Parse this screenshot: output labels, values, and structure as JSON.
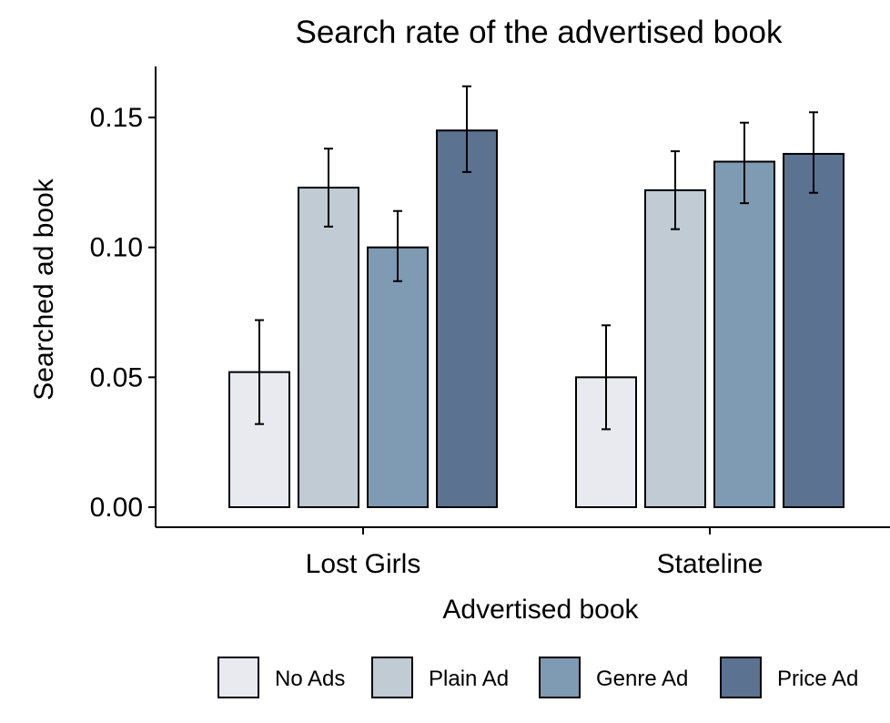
{
  "chart_data": {
    "type": "bar",
    "title": "Search rate of the advertised book",
    "xlabel": "Advertised book",
    "ylabel": "Searched ad book",
    "categories": [
      "Lost Girls",
      "Stateline"
    ],
    "ylim": [
      0,
      0.16
    ],
    "yticks": [
      "0.00",
      "0.05",
      "0.10",
      "0.15"
    ],
    "grid": false,
    "legend_position": "bottom",
    "series": [
      {
        "name": "No Ads",
        "color": "#e8eaf0",
        "values": [
          0.052,
          0.05
        ],
        "error": [
          [
            0.032,
            0.072
          ],
          [
            0.03,
            0.07
          ]
        ]
      },
      {
        "name": "Plain Ad",
        "color": "#c0cbd4",
        "values": [
          0.123,
          0.122
        ],
        "error": [
          [
            0.108,
            0.138
          ],
          [
            0.107,
            0.137
          ]
        ]
      },
      {
        "name": "Genre Ad",
        "color": "#7f9ab3",
        "values": [
          0.1,
          0.133
        ],
        "error": [
          [
            0.087,
            0.114
          ],
          [
            0.117,
            0.148
          ]
        ]
      },
      {
        "name": "Price Ad",
        "color": "#5b7290",
        "values": [
          0.145,
          0.136
        ],
        "error": [
          [
            0.129,
            0.162
          ],
          [
            0.121,
            0.152
          ]
        ]
      }
    ]
  }
}
